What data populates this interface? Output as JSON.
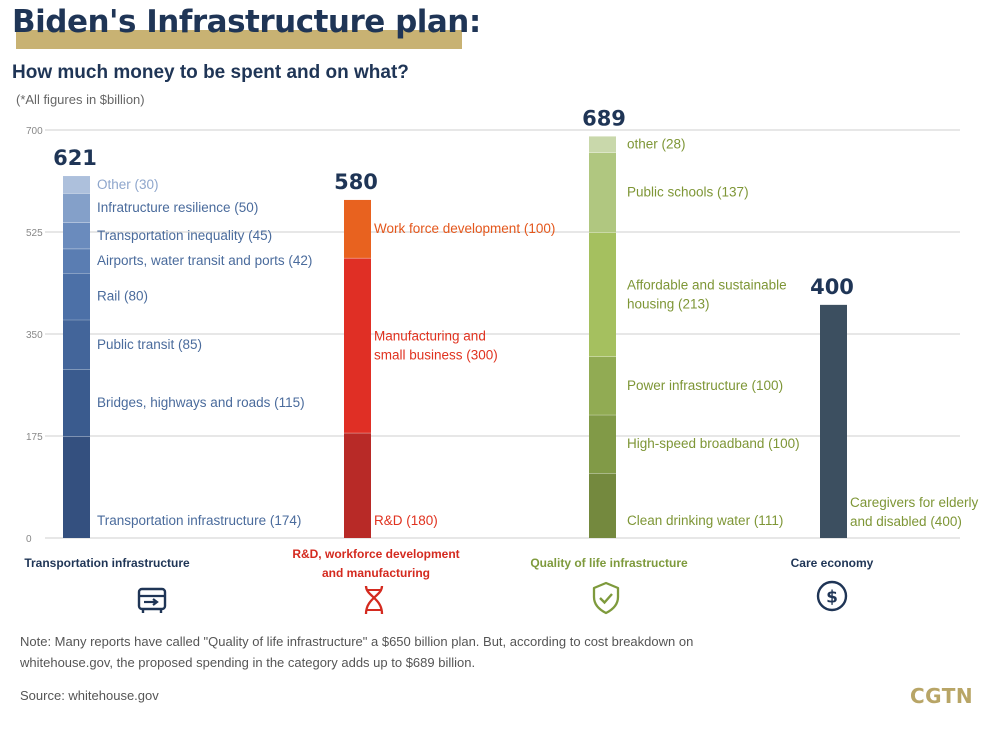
{
  "header": {
    "title": "Biden's Infrastructure plan:",
    "subtitle": "How much money to be spent and on what?",
    "unit_note": "(*All figures in $billion)"
  },
  "footer": {
    "note": "Note: Many reports have called \"Quality of life infrastructure\" a $650 billion plan. But, according to cost breakdown on whitehouse.gov, the proposed spending in the category adds up to $689 billion.",
    "source": "Source: whitehouse.gov",
    "brand": "CGTN"
  },
  "icons": {
    "transportation": "vehicle-screen-icon",
    "rd": "dna-icon",
    "quality": "shield-check-icon",
    "care": "dollar-circle-icon"
  },
  "chart_data": {
    "type": "bar",
    "stacked": true,
    "ylim": [
      0,
      700
    ],
    "yticks": [
      0,
      175,
      350,
      525,
      700
    ],
    "grid": true,
    "categories": [
      {
        "name": "Transportation infrastructure",
        "name_color": "#1f3556",
        "total": 621,
        "label_color": "#4a6b9c",
        "segments": [
          {
            "label": "Transportation infrastructure (174)",
            "value": 174,
            "color": "#34507f"
          },
          {
            "label": "Bridges, highways and roads (115)",
            "value": 115,
            "color": "#3a5b8e"
          },
          {
            "label": "Public transit (85)",
            "value": 85,
            "color": "#43659a"
          },
          {
            "label": "Rail (80)",
            "value": 80,
            "color": "#4c70a7"
          },
          {
            "label": "Airports, water transit and ports (42)",
            "value": 42,
            "color": "#5a7db2"
          },
          {
            "label": "Transportation inequality (45)",
            "value": 45,
            "color": "#6a8bbd"
          },
          {
            "label": "Infratructure resilience (50)",
            "value": 50,
            "color": "#84a0c9"
          },
          {
            "label": "Other (30)",
            "value": 30,
            "color": "#adc0dc"
          }
        ]
      },
      {
        "name": "R&D, workforce development and manufacturing",
        "name_lines": [
          "R&D, workforce development",
          "and manufacturing"
        ],
        "name_color": "#d42a1f",
        "total": 580,
        "label_color": "#e0321f",
        "segments": [
          {
            "label": "R&D (180)",
            "value": 180,
            "color": "#b82a27"
          },
          {
            "label": "Manufacturing and small business (300)",
            "label_lines": [
              "Manufacturing and",
              "small business (300)"
            ],
            "value": 300,
            "color": "#e02f25"
          },
          {
            "label": "Work force development  (100)",
            "value": 100,
            "color": "#e8621f",
            "label_color": "#e4571c"
          }
        ]
      },
      {
        "name": "Quality of life infrastructure",
        "name_color": "#7e9a3c",
        "total": 689,
        "label_color": "#7e9636",
        "segments": [
          {
            "label": "Clean drinking water  (111)",
            "value": 111,
            "color": "#74893e"
          },
          {
            "label": "High-speed broadband  (100)",
            "value": 100,
            "color": "#819a47"
          },
          {
            "label": "Power infrastructure  (100)",
            "value": 100,
            "color": "#91ab53"
          },
          {
            "label": "Affordable and sustainable housing  (213)",
            "label_lines": [
              "Affordable and sustainable",
              "housing  (213)"
            ],
            "value": 213,
            "color": "#a5c05f"
          },
          {
            "label": "Public schools  (137)",
            "value": 137,
            "color": "#b0c780"
          },
          {
            "label": "other  (28)",
            "value": 28,
            "color": "#c9d8ab"
          }
        ]
      },
      {
        "name": "Care economy",
        "name_color": "#1f3556",
        "total": 400,
        "label_color": "#7e9636",
        "segments": [
          {
            "label": "Caregivers for elderly and disabled  (400)",
            "label_lines": [
              "Caregivers for elderly",
              "and disabled   (400)"
            ],
            "value": 400,
            "color": "#3c4f60"
          }
        ]
      }
    ]
  }
}
